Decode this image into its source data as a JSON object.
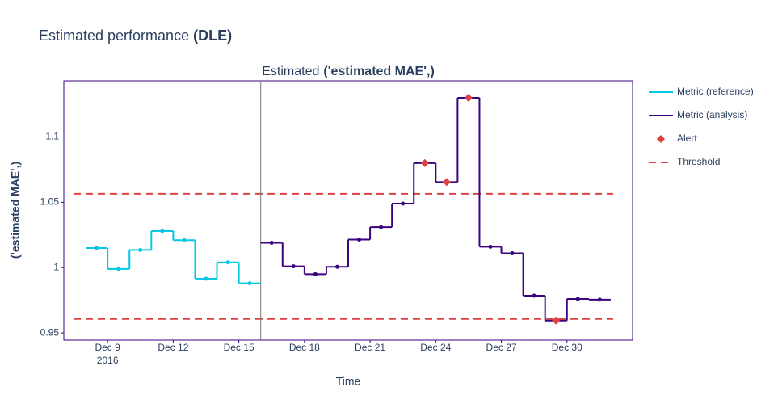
{
  "chart_data": {
    "type": "step",
    "title": [
      "Estimated performance",
      "(DLE)"
    ],
    "subtitle": [
      "Estimated",
      "('estimated MAE',)"
    ],
    "x_label": "Time",
    "y_label": "('estimated MAE',)",
    "xlim": [
      "2016-12-07",
      "2017-01-02"
    ],
    "xticks": [
      {
        "value": "2016-12-09",
        "label": "Dec 9"
      },
      {
        "value": "2016-12-12",
        "label": "Dec 12"
      },
      {
        "value": "2016-12-15",
        "label": "Dec 15"
      },
      {
        "value": "2016-12-18",
        "label": "Dec 18"
      },
      {
        "value": "2016-12-21",
        "label": "Dec 21"
      },
      {
        "value": "2016-12-24",
        "label": "Dec 24"
      },
      {
        "value": "2016-12-27",
        "label": "Dec 27"
      },
      {
        "value": "2016-12-30",
        "label": "Dec 30"
      }
    ],
    "x_year_label": "2016",
    "ylim": [
      0.9445,
      1.143
    ],
    "yticks": [
      0.95,
      1,
      1.05,
      1.1
    ],
    "series": [
      {
        "name": "Metric (reference)",
        "color": "#00c8e5",
        "x": [
          "2016-12-08",
          "2016-12-09",
          "2016-12-10",
          "2016-12-11",
          "2016-12-12",
          "2016-12-13",
          "2016-12-14",
          "2016-12-15"
        ],
        "values": [
          1.015,
          0.999,
          1.0135,
          1.028,
          1.021,
          0.9915,
          1.004,
          0.988
        ]
      },
      {
        "name": "Metric (analysis)",
        "color": "#3b0280",
        "x": [
          "2016-12-16",
          "2016-12-17",
          "2016-12-18",
          "2016-12-19",
          "2016-12-20",
          "2016-12-21",
          "2016-12-22",
          "2016-12-23",
          "2016-12-24",
          "2016-12-25",
          "2016-12-26",
          "2016-12-27",
          "2016-12-28",
          "2016-12-29",
          "2016-12-30",
          "2016-12-31"
        ],
        "values": [
          1.019,
          1.001,
          0.995,
          1.0006,
          1.0215,
          1.031,
          1.049,
          1.08,
          1.0655,
          1.13,
          1.016,
          1.011,
          0.9785,
          0.9595,
          0.976,
          0.9755
        ]
      }
    ],
    "alerts": {
      "name": "Alert",
      "color": "#dd4040",
      "x": [
        "2016-12-23",
        "2016-12-24",
        "2016-12-25",
        "2016-12-29"
      ],
      "values": [
        1.08,
        1.0655,
        1.13,
        0.9595
      ]
    },
    "thresholds": {
      "name": "Threshold",
      "color": "#dd4040",
      "values": [
        1.0565,
        0.9607
      ]
    }
  }
}
